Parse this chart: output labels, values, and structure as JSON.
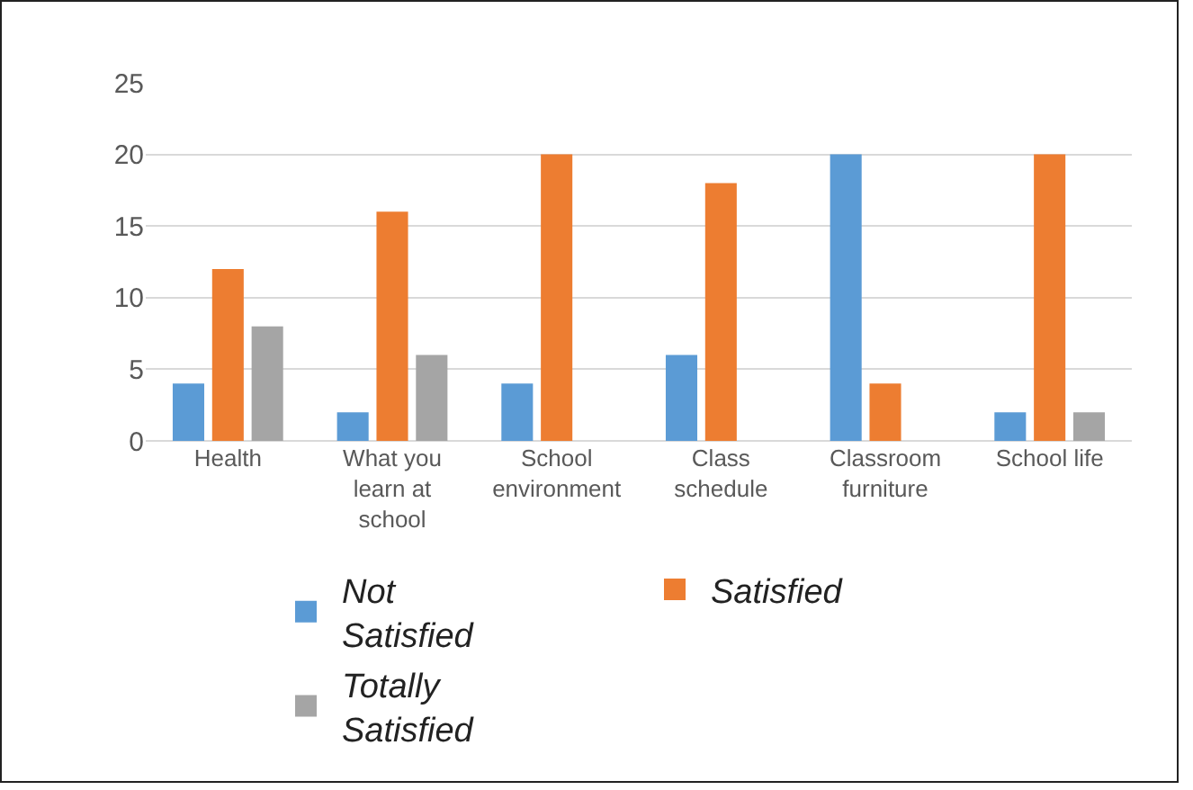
{
  "chart_data": {
    "type": "bar",
    "categories": [
      "Health",
      "What you learn at school",
      "School environment",
      "Class schedule",
      "Classroom furniture",
      "School life"
    ],
    "series": [
      {
        "name": "Not Satisfied",
        "color": "#5b9bd5",
        "values": [
          4,
          2,
          4,
          6,
          20,
          2
        ]
      },
      {
        "name": "Satisfied",
        "color": "#ed7d31",
        "values": [
          12,
          16,
          20,
          18,
          4,
          20
        ]
      },
      {
        "name": "Totally Satisfied",
        "color": "#a5a5a5",
        "values": [
          8,
          6,
          0,
          0,
          0,
          2
        ]
      }
    ],
    "ylim": [
      0,
      25
    ],
    "yticks": [
      0,
      5,
      10,
      15,
      20,
      25
    ],
    "grid": "y",
    "legend": "bottom"
  }
}
